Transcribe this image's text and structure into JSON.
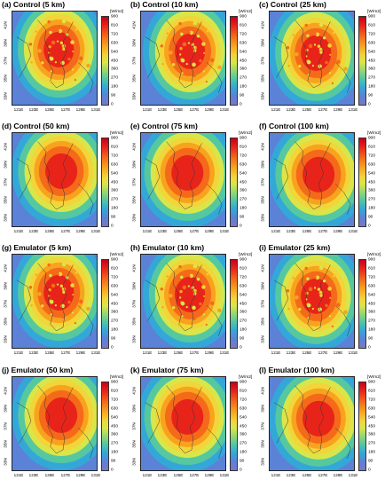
{
  "panels": [
    {
      "id": "a",
      "title": "(a) Control (5 km)"
    },
    {
      "id": "b",
      "title": "(b) Control (10 km)"
    },
    {
      "id": "c",
      "title": "(c) Control (25 km)"
    },
    {
      "id": "d",
      "title": "(d) Control (50 km)"
    },
    {
      "id": "e",
      "title": "(e) Control (75 km)"
    },
    {
      "id": "f",
      "title": "(f) Control (100 km)"
    },
    {
      "id": "g",
      "title": "(g) Emulator (5 km)"
    },
    {
      "id": "h",
      "title": "(h) Emulator (10 km)"
    },
    {
      "id": "i",
      "title": "(i) Emulator (25 km)"
    },
    {
      "id": "j",
      "title": "(j) Emulator (50 km)"
    },
    {
      "id": "k",
      "title": "(k) Emulator (75 km)"
    },
    {
      "id": "l",
      "title": "(l) Emulator (100 km)"
    }
  ],
  "colorbar": {
    "unit": "[W/m2]",
    "ticks": [
      "900",
      "810",
      "720",
      "630",
      "540",
      "450",
      "360",
      "270",
      "180",
      "90",
      "0"
    ],
    "colors": [
      "#c8001a",
      "#e8241a",
      "#f46a1a",
      "#f8a31e",
      "#f2d53a",
      "#d9e64a",
      "#9fd96a",
      "#55c8a0",
      "#33a8d8",
      "#5b82d6",
      "#7a78c6"
    ]
  },
  "axes": {
    "lat_labels": [
      "41N",
      "39N",
      "37N",
      "35N",
      "33N"
    ],
    "lon_labels": [
      "121E",
      "123E",
      "125E",
      "127E",
      "129E",
      "131E"
    ]
  }
}
